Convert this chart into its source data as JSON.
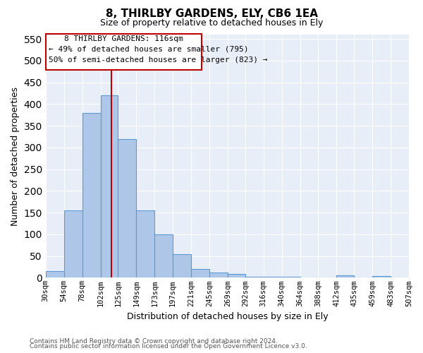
{
  "title": "8, THIRLBY GARDENS, ELY, CB6 1EA",
  "subtitle": "Size of property relative to detached houses in Ely",
  "xlabel": "Distribution of detached houses by size in Ely",
  "ylabel": "Number of detached properties",
  "footnote1": "Contains HM Land Registry data © Crown copyright and database right 2024.",
  "footnote2": "Contains public sector information licensed under the Open Government Licence v3.0.",
  "bar_edges": [
    30,
    54,
    78,
    102,
    125,
    149,
    173,
    197,
    221,
    245,
    269,
    292,
    316,
    340,
    364,
    388,
    412,
    435,
    459,
    483,
    507
  ],
  "bar_heights": [
    15,
    155,
    380,
    420,
    320,
    155,
    100,
    55,
    20,
    12,
    8,
    3,
    3,
    2,
    1,
    1,
    5,
    1,
    4,
    1
  ],
  "bar_color": "#aec6e8",
  "bar_edgecolor": "#5b9bd5",
  "tick_labels": [
    "30sqm",
    "54sqm",
    "78sqm",
    "102sqm",
    "125sqm",
    "149sqm",
    "173sqm",
    "197sqm",
    "221sqm",
    "245sqm",
    "269sqm",
    "292sqm",
    "316sqm",
    "340sqm",
    "364sqm",
    "388sqm",
    "412sqm",
    "435sqm",
    "459sqm",
    "483sqm",
    "507sqm"
  ],
  "ylim": [
    0,
    560
  ],
  "yticks": [
    0,
    50,
    100,
    150,
    200,
    250,
    300,
    350,
    400,
    450,
    500,
    550
  ],
  "vline_x": 116,
  "vline_color": "#c00000",
  "annotation_title": "8 THIRLBY GARDENS: 116sqm",
  "annotation_line1": "← 49% of detached houses are smaller (795)",
  "annotation_line2": "50% of semi-detached houses are larger (823) →",
  "annotation_box_color": "#c00000",
  "background_color": "#e8eef7"
}
